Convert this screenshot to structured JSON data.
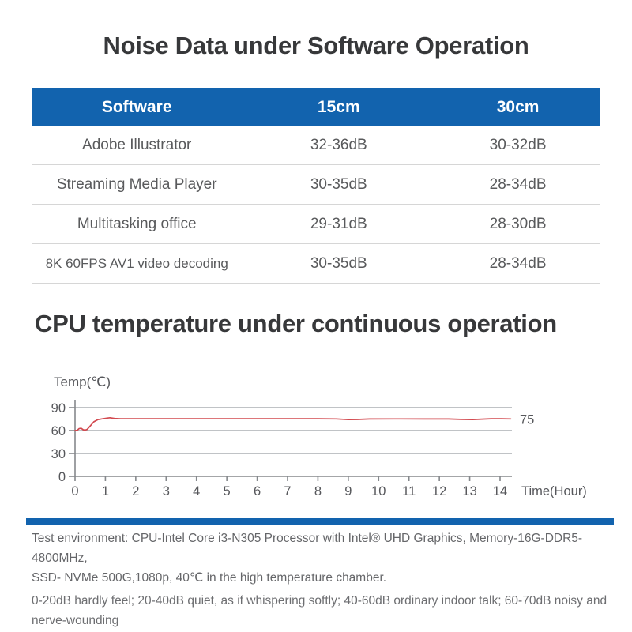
{
  "sections": {
    "noise_title": "Noise Data under Software Operation",
    "temp_title": "CPU temperature under continuous operation"
  },
  "noise_table": {
    "columns": [
      "Software",
      "15cm",
      "30cm"
    ],
    "rows": [
      [
        "Adobe Illustrator",
        "32-36dB",
        "30-32dB"
      ],
      [
        "Streaming Media Player",
        "30-35dB",
        "28-34dB"
      ],
      [
        "Multitasking office",
        "29-31dB",
        "28-30dB"
      ],
      [
        "8K 60FPS AV1 video decoding",
        "30-35dB",
        "28-34dB"
      ]
    ]
  },
  "chart_data": {
    "type": "line",
    "title": "CPU temperature under continuous operation",
    "ylabel": "Temp(℃)",
    "xlabel": "Time(Hour)",
    "y_ticks": [
      0,
      30,
      60,
      90
    ],
    "x_ticks": [
      0,
      1,
      2,
      3,
      4,
      5,
      6,
      7,
      8,
      9,
      10,
      11,
      12,
      13,
      14
    ],
    "ylim": [
      0,
      93
    ],
    "xlim": [
      0,
      14.4
    ],
    "grid": true,
    "legend_position": "none",
    "end_label": "75",
    "series": [
      {
        "name": "CPU temperature",
        "color": "#d2494f",
        "points": [
          [
            0,
            60
          ],
          [
            0.07,
            60.3
          ],
          [
            0.13,
            62.5
          ],
          [
            0.2,
            63
          ],
          [
            0.27,
            61
          ],
          [
            0.33,
            60.6
          ],
          [
            0.4,
            61.5
          ],
          [
            0.5,
            66
          ],
          [
            0.62,
            71.5
          ],
          [
            0.75,
            74.3
          ],
          [
            0.9,
            75.3
          ],
          [
            1.05,
            76.2
          ],
          [
            1.15,
            76.8
          ],
          [
            1.3,
            75.8
          ],
          [
            1.5,
            75.4
          ],
          [
            2,
            75.4
          ],
          [
            3,
            75.4
          ],
          [
            4,
            75.4
          ],
          [
            5,
            75.4
          ],
          [
            6,
            75.4
          ],
          [
            7,
            75.4
          ],
          [
            8,
            75.4
          ],
          [
            8.6,
            75.2
          ],
          [
            9,
            74.3
          ],
          [
            9.3,
            74.5
          ],
          [
            9.7,
            75.1
          ],
          [
            10.5,
            75.2
          ],
          [
            11.5,
            75.1
          ],
          [
            12.3,
            75.1
          ],
          [
            12.7,
            74.6
          ],
          [
            13.1,
            74.4
          ],
          [
            13.4,
            74.9
          ],
          [
            13.7,
            75.4
          ],
          [
            14,
            75.4
          ],
          [
            14.35,
            75.2
          ]
        ]
      }
    ]
  },
  "footer": {
    "lines": [
      "Test environment: CPU-Intel Core i3-N305 Processor with Intel® UHD Graphics,  Memory-16G-DDR5-4800MHz,",
      "SSD- NVMe 500G,1080p, 40℃ in the high temperature chamber.",
      "0-20dB hardly feel; 20-40dB quiet, as if whispering softly; 40-60dB ordinary indoor talk; 60-70dB noisy and nerve-wounding"
    ]
  },
  "colors": {
    "accent_blue": "#1263ae",
    "line_red": "#d2494f",
    "title_text": "#37383a",
    "body_text": "#595a5c"
  }
}
